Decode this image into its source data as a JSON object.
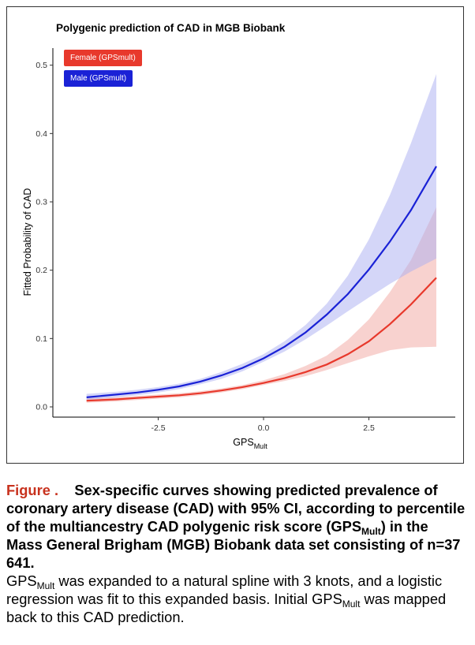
{
  "chart_data": {
    "type": "line",
    "title": "Polygenic prediction of CAD in MGB Biobank",
    "xlabel_main": "GPS",
    "xlabel_sub": "Mult",
    "ylabel": "Fitted Probability of CAD",
    "xlim": [
      -5.0,
      4.55
    ],
    "ylim": [
      -0.015,
      0.525
    ],
    "x_ticks": [
      -2.5,
      0.0,
      2.5
    ],
    "x_tick_labels": [
      "-2.5",
      "0.0",
      "2.5"
    ],
    "y_ticks": [
      0.0,
      0.1,
      0.2,
      0.3,
      0.4,
      0.5
    ],
    "y_tick_labels": [
      "0.0",
      "0.1",
      "0.2",
      "0.3",
      "0.4",
      "0.5"
    ],
    "grid": false,
    "legend_position": "top-left",
    "x": [
      -4.2,
      -3.5,
      -3.0,
      -2.5,
      -2.0,
      -1.5,
      -1.0,
      -0.5,
      0.0,
      0.5,
      1.0,
      1.5,
      2.0,
      2.5,
      3.0,
      3.5,
      4.1
    ],
    "series": [
      {
        "name": "Female (GPSmult)",
        "color": "#e8392c",
        "band_color": "#f2a5a0",
        "values": [
          0.009,
          0.011,
          0.013,
          0.015,
          0.017,
          0.02,
          0.024,
          0.029,
          0.035,
          0.042,
          0.051,
          0.062,
          0.077,
          0.096,
          0.121,
          0.15,
          0.189
        ],
        "lower": [
          0.006,
          0.008,
          0.01,
          0.012,
          0.014,
          0.017,
          0.021,
          0.026,
          0.032,
          0.038,
          0.045,
          0.054,
          0.064,
          0.074,
          0.083,
          0.087,
          0.088
        ],
        "upper": [
          0.013,
          0.014,
          0.016,
          0.018,
          0.02,
          0.023,
          0.027,
          0.032,
          0.039,
          0.048,
          0.06,
          0.075,
          0.098,
          0.128,
          0.168,
          0.215,
          0.292
        ]
      },
      {
        "name": "Male (GPSmult)",
        "color": "#1a22d6",
        "band_color": "#a9adf2",
        "values": [
          0.014,
          0.018,
          0.021,
          0.025,
          0.03,
          0.037,
          0.046,
          0.057,
          0.071,
          0.088,
          0.109,
          0.135,
          0.165,
          0.201,
          0.242,
          0.288,
          0.352
        ],
        "lower": [
          0.01,
          0.014,
          0.017,
          0.021,
          0.026,
          0.033,
          0.041,
          0.052,
          0.066,
          0.081,
          0.099,
          0.119,
          0.14,
          0.16,
          0.18,
          0.198,
          0.217
        ],
        "upper": [
          0.019,
          0.022,
          0.025,
          0.029,
          0.034,
          0.041,
          0.051,
          0.063,
          0.077,
          0.096,
          0.12,
          0.151,
          0.192,
          0.245,
          0.31,
          0.386,
          0.487
        ]
      }
    ]
  },
  "caption": {
    "figure_label": "Figure .",
    "bold_part1": "Sex-specific curves showing predicted prevalence of coronary artery disease (CAD) with 95% CI, according to percentile of the multiancestry CAD polygenic risk score (GPS",
    "bold_sub": "Mult",
    "bold_part2": ") in the Mass General Brigham (MGB) Biobank data set consisting of n=37 641.",
    "text_main1": "GPS",
    "text_sub1": "Mult",
    "text_part1": " was expanded to a natural spline with 3 knots, and a logistic regression was fit to this expanded basis. Initial GPS",
    "text_sub2": "Mult",
    "text_part2": " was mapped back to this CAD prediction."
  }
}
